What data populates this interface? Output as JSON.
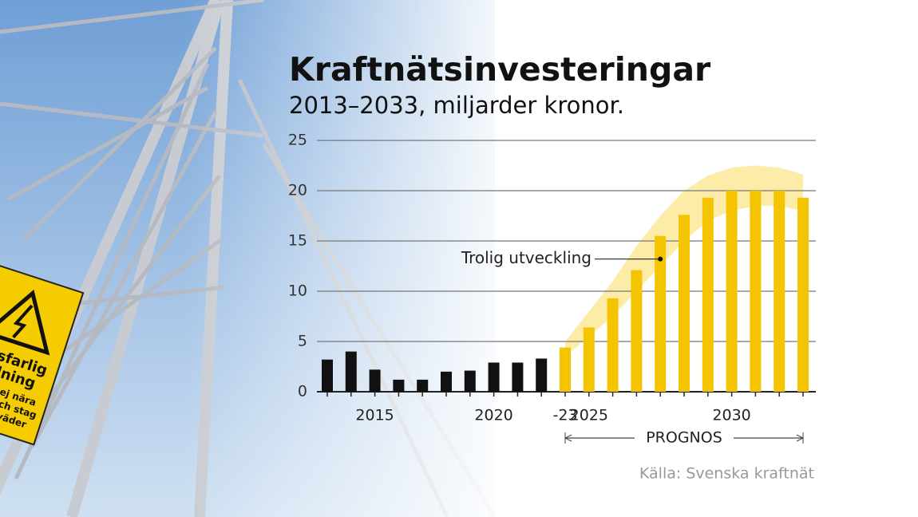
{
  "chart_data": {
    "type": "bar",
    "title": "Kraftnätsinvesteringar",
    "subtitle": "2013–2033, miljarder kronor.",
    "categories": [
      null,
      null,
      "2015",
      null,
      null,
      null,
      null,
      "2020",
      null,
      null,
      "-23",
      "2025",
      null,
      null,
      null,
      null,
      null,
      "2030",
      null,
      null,
      null
    ],
    "values": [
      3.2,
      4.0,
      2.2,
      1.2,
      1.2,
      2.0,
      2.1,
      2.9,
      2.9,
      3.3,
      4.4,
      6.4,
      9.3,
      12.1,
      15.5,
      17.6,
      19.3,
      20.0,
      20.0,
      20.0,
      19.3
    ],
    "colors": [
      "#111111",
      "#111111",
      "#111111",
      "#111111",
      "#111111",
      "#111111",
      "#111111",
      "#111111",
      "#111111",
      "#111111",
      "#f5c400",
      "#f5c400",
      "#f5c400",
      "#f5c400",
      "#f5c400",
      "#f5c400",
      "#f5c400",
      "#f5c400",
      "#f5c400",
      "#f5c400",
      "#f5c400"
    ],
    "band": {
      "color": "#fbe58a",
      "high": [
        null,
        null,
        null,
        null,
        null,
        null,
        null,
        null,
        null,
        null,
        5,
        8,
        11,
        14.5,
        17.5,
        20,
        21.5,
        22.3,
        22.5,
        22.3,
        21.6
      ],
      "low": [
        null,
        null,
        null,
        null,
        null,
        null,
        null,
        null,
        null,
        null,
        3.5,
        5.5,
        7.5,
        10,
        12.5,
        15,
        17,
        18,
        18.5,
        18.5,
        18
      ]
    },
    "annotation": {
      "text": "Trolig utveckling",
      "value": 13.2
    },
    "forecast_label": "PROGNOS",
    "source": "Källa: Svenska kraftnät",
    "ylim": [
      0,
      25
    ],
    "yticks": [
      0,
      5,
      10,
      15,
      20,
      25
    ],
    "grid": true
  },
  "background_sign": {
    "lines": [
      "Livsfarlig",
      "ledning",
      "Vistas ej nära",
      "stolpe och stag",
      "vid åskväder"
    ]
  }
}
